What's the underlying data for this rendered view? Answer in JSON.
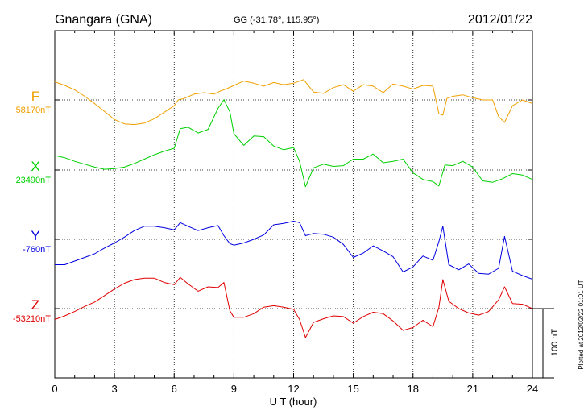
{
  "header": {
    "title": "Gnangara (GNA)",
    "coords": "GG (-31.78°, 115.95°)",
    "date": "2012/01/22"
  },
  "footer": {
    "xlabel": "U T (hour)",
    "plotted": "Plotted at 2012/02/22 01:01 UT",
    "scale_label": "100 nT"
  },
  "chart_data": {
    "type": "line",
    "xlabel": "U T (hour)",
    "xlim": [
      0,
      24
    ],
    "xticks": [
      "0",
      "3",
      "6",
      "9",
      "12",
      "15",
      "18",
      "21",
      "24"
    ],
    "scale_bar_nT": 100,
    "grid": true,
    "series": [
      {
        "name": "F",
        "baseline_label": "58170nT",
        "color": "#f0a000",
        "offset_nT": 0,
        "x": [
          0,
          0.5,
          1,
          1.5,
          2,
          2.5,
          3,
          3.5,
          4,
          4.5,
          5,
          5.5,
          6,
          6.2,
          6.5,
          7,
          7.5,
          8,
          8.3,
          8.6,
          9,
          9.5,
          10,
          10.5,
          11,
          11.5,
          12,
          12.5,
          13,
          13.5,
          14,
          14.5,
          15,
          15.5,
          16,
          16.5,
          17,
          17.5,
          18,
          18.5,
          19,
          19.3,
          19.5,
          19.7,
          20,
          20.5,
          21,
          21.5,
          22,
          22.3,
          22.6,
          23,
          23.5,
          24
        ],
        "values": [
          25,
          20,
          14,
          5,
          -5,
          -16,
          -27,
          -33,
          -34,
          -32,
          -26,
          -17,
          -8,
          0,
          2,
          8,
          10,
          8,
          12,
          15,
          20,
          26,
          23,
          19,
          24,
          21,
          23,
          28,
          11,
          9,
          17,
          21,
          12,
          21,
          19,
          10,
          22,
          19,
          15,
          20,
          19,
          -19,
          -21,
          2,
          5,
          7,
          3,
          0,
          0,
          -23,
          -31,
          -8,
          0,
          -5
        ]
      },
      {
        "name": "X",
        "baseline_label": "23490nT",
        "color": "#00d000",
        "offset_nT": 0,
        "x": [
          0,
          0.5,
          1,
          1.5,
          2,
          2.5,
          3,
          3.5,
          4,
          4.5,
          5,
          5.5,
          6,
          6.3,
          6.7,
          7.2,
          7.7,
          8.2,
          8.5,
          8.8,
          9,
          9.5,
          10,
          10.5,
          11,
          11.5,
          12,
          12.3,
          12.6,
          13,
          13.5,
          14,
          14.5,
          15,
          15.5,
          16,
          16.5,
          17,
          17.5,
          18,
          18.5,
          19,
          19.3,
          19.6,
          20,
          20.5,
          21,
          21.5,
          22,
          22.5,
          23,
          23.5,
          24
        ],
        "values": [
          20,
          17,
          12,
          8,
          4,
          1,
          2,
          4,
          9,
          15,
          21,
          26,
          30,
          57,
          59,
          51,
          56,
          85,
          97,
          80,
          50,
          34,
          47,
          46,
          33,
          28,
          31,
          12,
          -23,
          3,
          8,
          5,
          6,
          15,
          15,
          22,
          10,
          12,
          15,
          -4,
          -13,
          -16,
          -22,
          7,
          6,
          12,
          4,
          -15,
          -17,
          -12,
          -5,
          -7,
          -13
        ]
      },
      {
        "name": "Y",
        "baseline_label": "-760nT",
        "color": "#0000e0",
        "offset_nT": 0,
        "x": [
          0,
          0.5,
          1,
          1.5,
          2,
          2.5,
          3,
          3.5,
          4,
          4.5,
          5,
          5.5,
          6,
          6.3,
          6.7,
          7.2,
          7.7,
          8.2,
          8.5,
          8.8,
          9,
          9.5,
          10,
          10.5,
          11,
          11.5,
          12,
          12.3,
          12.6,
          13,
          13.5,
          14,
          14.5,
          15,
          15.5,
          16,
          16.5,
          17,
          17.5,
          18,
          18.5,
          19,
          19.3,
          19.5,
          19.8,
          20.3,
          20.8,
          21.3,
          21.8,
          22.3,
          22.6,
          23,
          23.5,
          24
        ],
        "values": [
          -35,
          -35,
          -30,
          -25,
          -20,
          -12,
          -5,
          3,
          12,
          18,
          18,
          16,
          13,
          23,
          18,
          12,
          16,
          19,
          5,
          -6,
          -8,
          -5,
          0,
          6,
          20,
          22,
          25,
          23,
          5,
          8,
          7,
          3,
          -7,
          -25,
          -19,
          -9,
          -16,
          -24,
          -45,
          -38,
          -23,
          -29,
          -3,
          18,
          -35,
          -42,
          -34,
          -47,
          -48,
          -40,
          4,
          -44,
          -50,
          -55
        ]
      },
      {
        "name": "Z",
        "baseline_label": "-53210nT",
        "color": "#e00000",
        "offset_nT": 0,
        "x": [
          0,
          0.5,
          1,
          1.5,
          2,
          2.5,
          3,
          3.5,
          4,
          4.5,
          5,
          5.5,
          6,
          6.3,
          6.7,
          7.2,
          7.7,
          8.2,
          8.5,
          8.8,
          9,
          9.5,
          10,
          10.5,
          11,
          11.5,
          12,
          12.3,
          12.6,
          13,
          13.5,
          14,
          14.5,
          15,
          15.5,
          16,
          16.5,
          17,
          17.5,
          18,
          18.5,
          19,
          19.3,
          19.5,
          19.8,
          20.3,
          20.8,
          21.3,
          21.8,
          22.3,
          22.6,
          23,
          23.5,
          24
        ],
        "values": [
          -15,
          -10,
          -4,
          3,
          9,
          18,
          27,
          35,
          40,
          42,
          42,
          36,
          33,
          43,
          34,
          24,
          30,
          29,
          36,
          -3,
          -12,
          -12,
          -7,
          2,
          4,
          2,
          -1,
          -15,
          -40,
          -19,
          -14,
          -10,
          -11,
          -20,
          -11,
          -5,
          -7,
          -17,
          -30,
          -26,
          -16,
          -25,
          2,
          40,
          10,
          0,
          -6,
          -9,
          -4,
          12,
          30,
          7,
          6,
          0
        ]
      }
    ]
  }
}
